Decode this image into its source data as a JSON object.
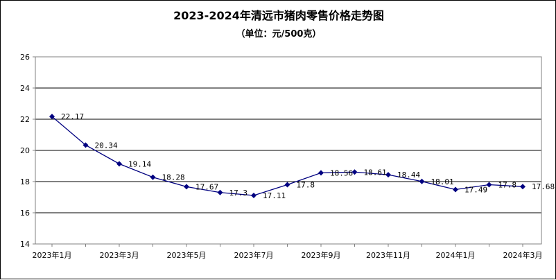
{
  "chart_data": {
    "type": "line",
    "title": "2023-2024年清远市猪肉零售价格走势图",
    "subtitle": "（单位：元/500克）",
    "x_tick_labels": [
      "2023年1月",
      "2023年3月",
      "2023年5月",
      "2023年7月",
      "2023年9月",
      "2023年11月",
      "2024年1月",
      "2024年3月"
    ],
    "x": [
      "2023年1月",
      "2023年2月",
      "2023年3月",
      "2023年4月",
      "2023年5月",
      "2023年6月",
      "2023年7月",
      "2023年8月",
      "2023年9月",
      "2023年10月",
      "2023年11月",
      "2023年12月",
      "2024年1月",
      "2024年2月",
      "2024年3月"
    ],
    "values": [
      22.17,
      20.34,
      19.14,
      18.28,
      17.67,
      17.3,
      17.11,
      17.8,
      18.56,
      18.61,
      18.44,
      18.01,
      17.49,
      17.8,
      17.68
    ],
    "data_labels": [
      "22.17",
      "20.34",
      "19.14",
      "18.28",
      "17.67",
      "17.3",
      "17.11",
      "17.8",
      "18.56",
      "18.61",
      "18.44",
      "18.01",
      "17.49",
      "17.8",
      "17.68"
    ],
    "y_ticks": [
      "14",
      "16",
      "18",
      "20",
      "22",
      "24",
      "26"
    ],
    "ylim": [
      14,
      26
    ],
    "grid": true,
    "legend": "none",
    "colors": {
      "line": "#000080",
      "marker": "#000080",
      "grid": "#000000",
      "axis": "#808080"
    }
  }
}
